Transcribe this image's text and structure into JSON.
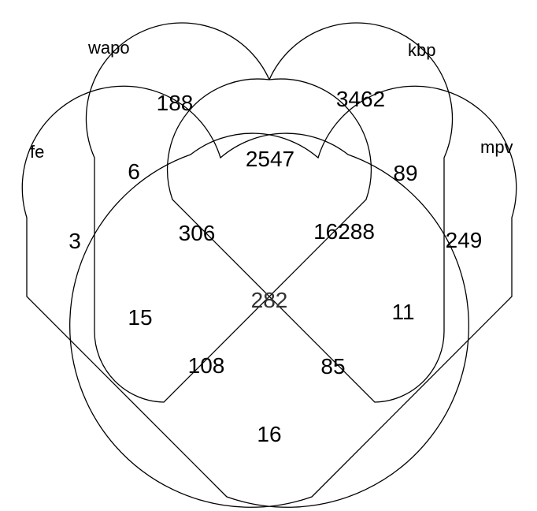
{
  "sets": {
    "wapo": "wapo",
    "kbp": "kbp",
    "fe": "fe",
    "mpv": "mpv"
  },
  "regions": {
    "wapo_only": "188",
    "kbp_only": "3462",
    "fe_only": "3",
    "mpv_only": "249",
    "fe_wapo": "6",
    "wapo_kbp": "2547",
    "kbp_mpv": "89",
    "fe_wapo_kbp": "306",
    "wapo_kbp_mpv": "16288",
    "fe_kbp": "15",
    "fe_wapo_kbp_mpv": "282",
    "wapo_mpv": "11",
    "fe_kbp_mpv": "108",
    "fe_wapo_mpv": "85",
    "fe_mpv": "16"
  }
}
